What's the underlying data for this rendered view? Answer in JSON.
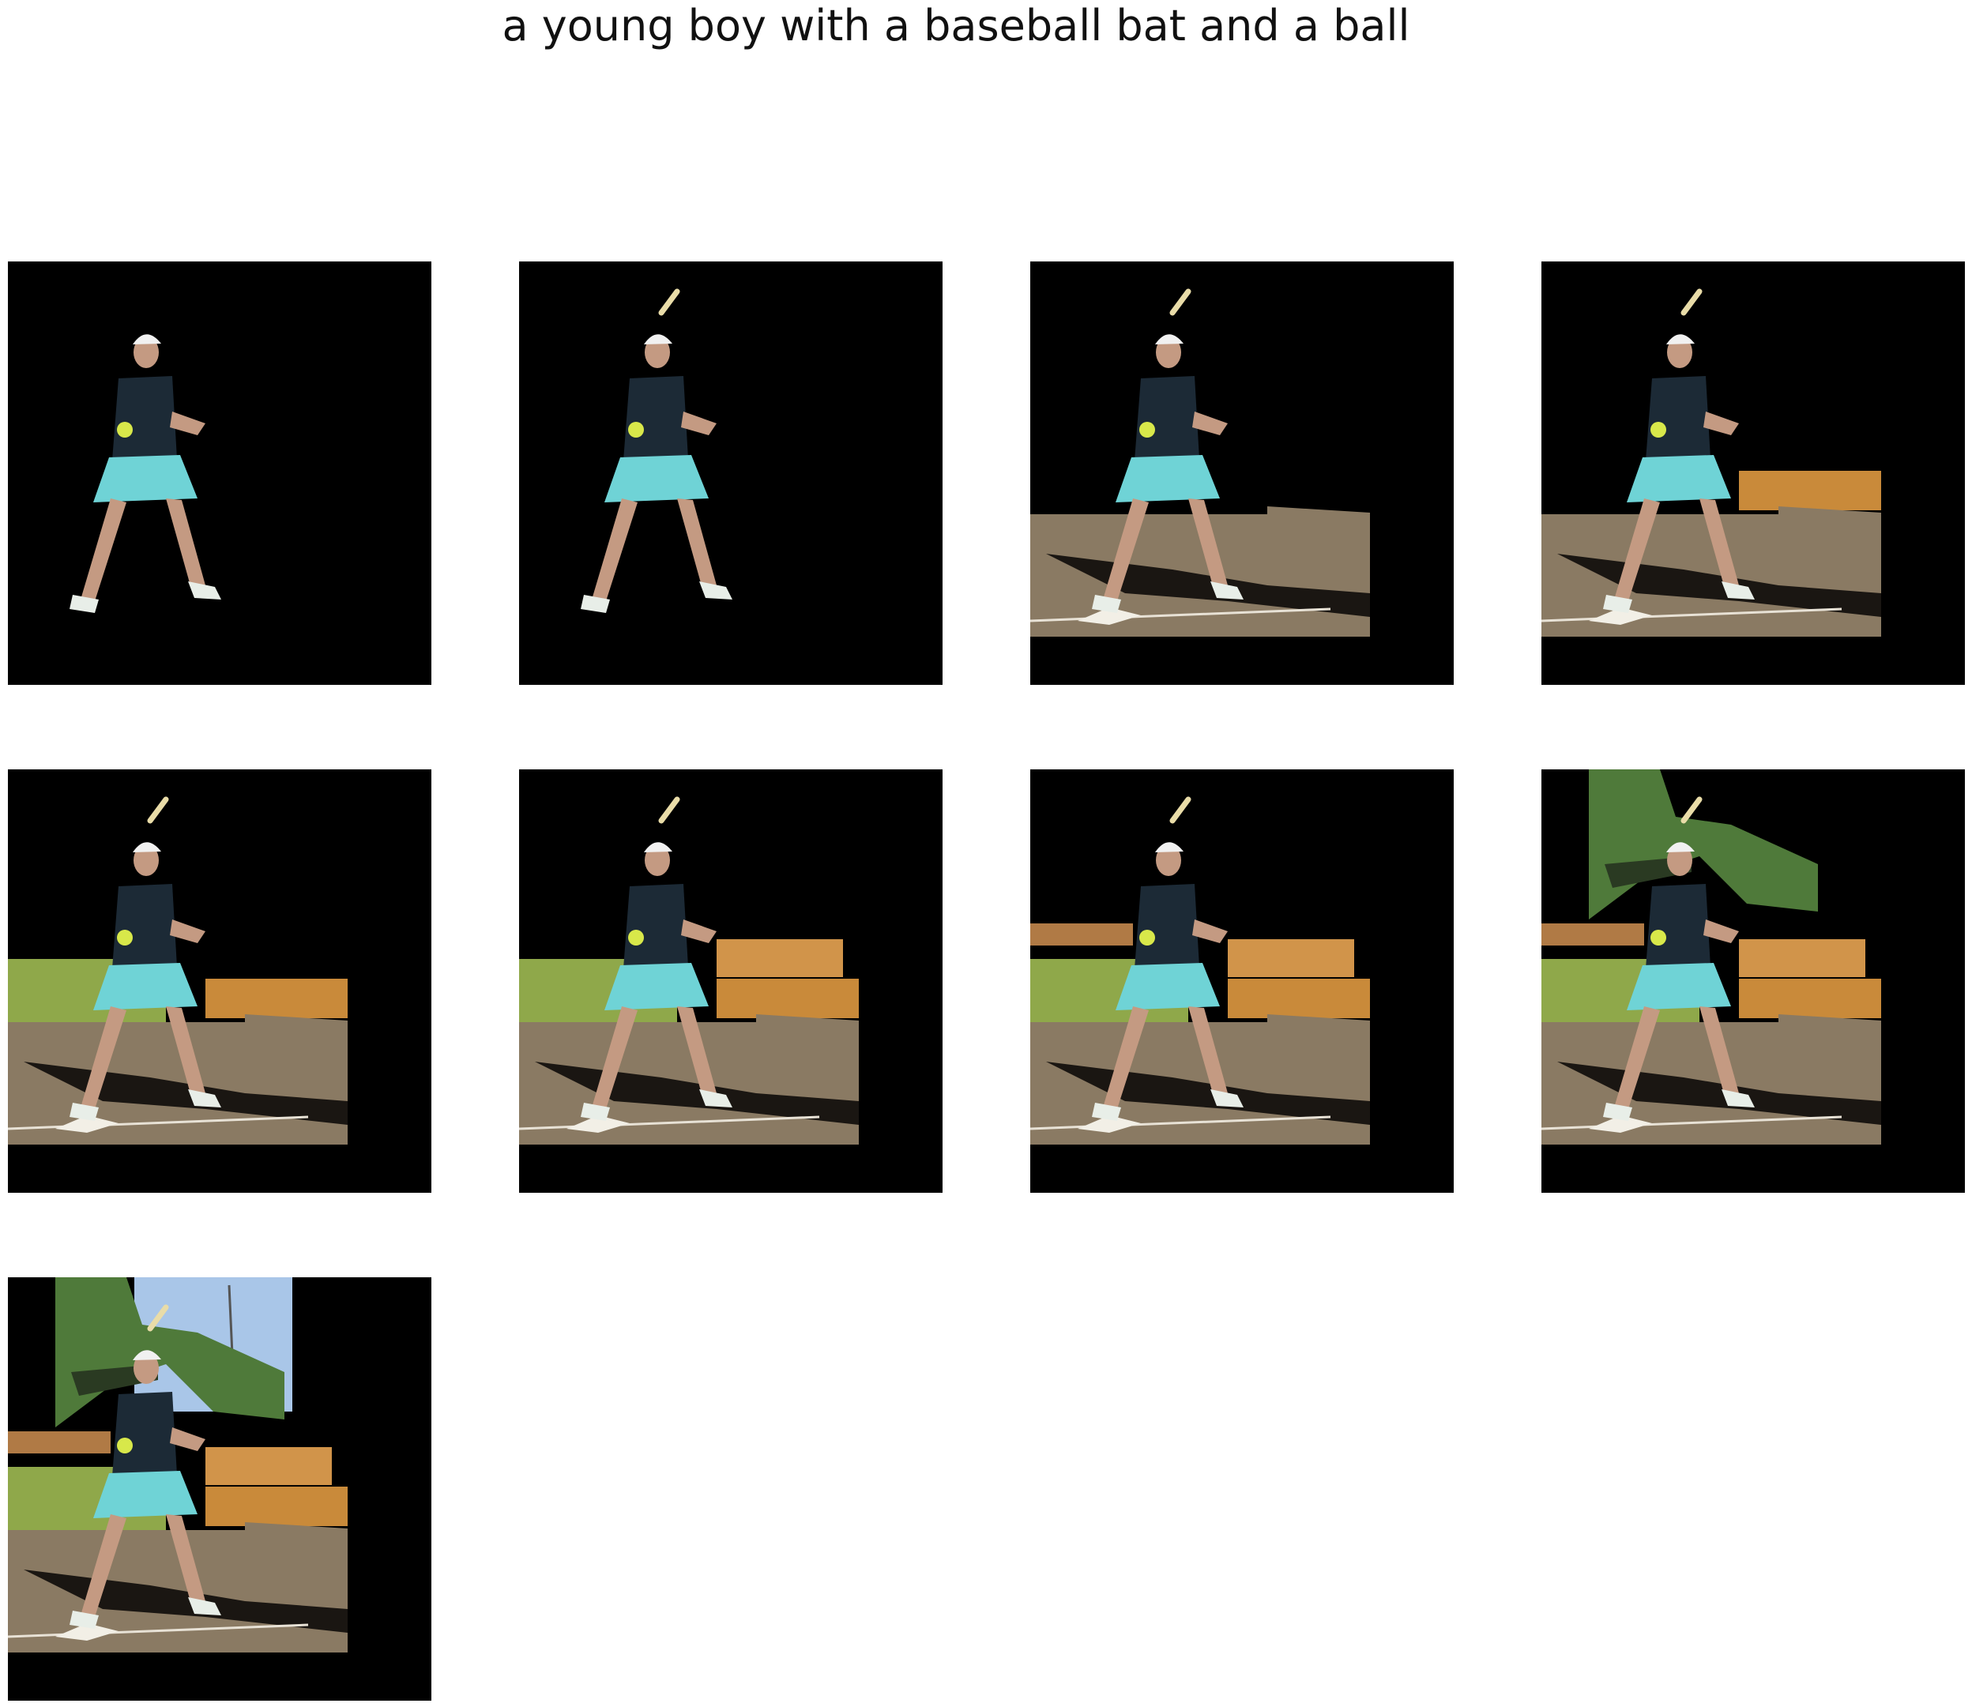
{
  "title": "a young boy with a baseball bat and a ball",
  "panels": [
    {
      "id": "p1",
      "bat": false,
      "dirt": false,
      "bleachers": 0,
      "grass": false,
      "topBench": false,
      "trees": false,
      "sky": false
    },
    {
      "id": "p2",
      "bat": true,
      "dirt": false,
      "bleachers": 0,
      "grass": false,
      "topBench": false,
      "trees": false,
      "sky": false
    },
    {
      "id": "p3",
      "bat": true,
      "dirt": true,
      "bleachers": 0,
      "grass": false,
      "topBench": false,
      "trees": false,
      "sky": false
    },
    {
      "id": "p4",
      "bat": true,
      "dirt": true,
      "bleachers": 1,
      "grass": false,
      "topBench": false,
      "trees": false,
      "sky": false
    },
    {
      "id": "p5",
      "bat": true,
      "dirt": true,
      "bleachers": 1,
      "grass": true,
      "topBench": false,
      "trees": false,
      "sky": false
    },
    {
      "id": "p6",
      "bat": true,
      "dirt": true,
      "bleachers": 2,
      "grass": true,
      "topBench": false,
      "trees": false,
      "sky": false
    },
    {
      "id": "p7",
      "bat": true,
      "dirt": true,
      "bleachers": 2,
      "grass": true,
      "topBench": true,
      "trees": false,
      "sky": false
    },
    {
      "id": "p8",
      "bat": true,
      "dirt": true,
      "bleachers": 2,
      "grass": true,
      "topBench": true,
      "trees": true,
      "sky": false
    },
    {
      "id": "p9",
      "bat": true,
      "dirt": true,
      "bleachers": 2,
      "grass": true,
      "topBench": true,
      "trees": true,
      "sky": true
    }
  ],
  "colors": {
    "background": "#000000",
    "dirt": "#8a7a63",
    "grass": "#8fa84a",
    "bleachers": "#c98a3a",
    "skirt": "#6fd3d6",
    "shirt": "#1c2a36",
    "skin": "#c49a82",
    "ball": "#d8e84a",
    "sky": "#a9c6e8",
    "trees": "#4f7a3a"
  }
}
